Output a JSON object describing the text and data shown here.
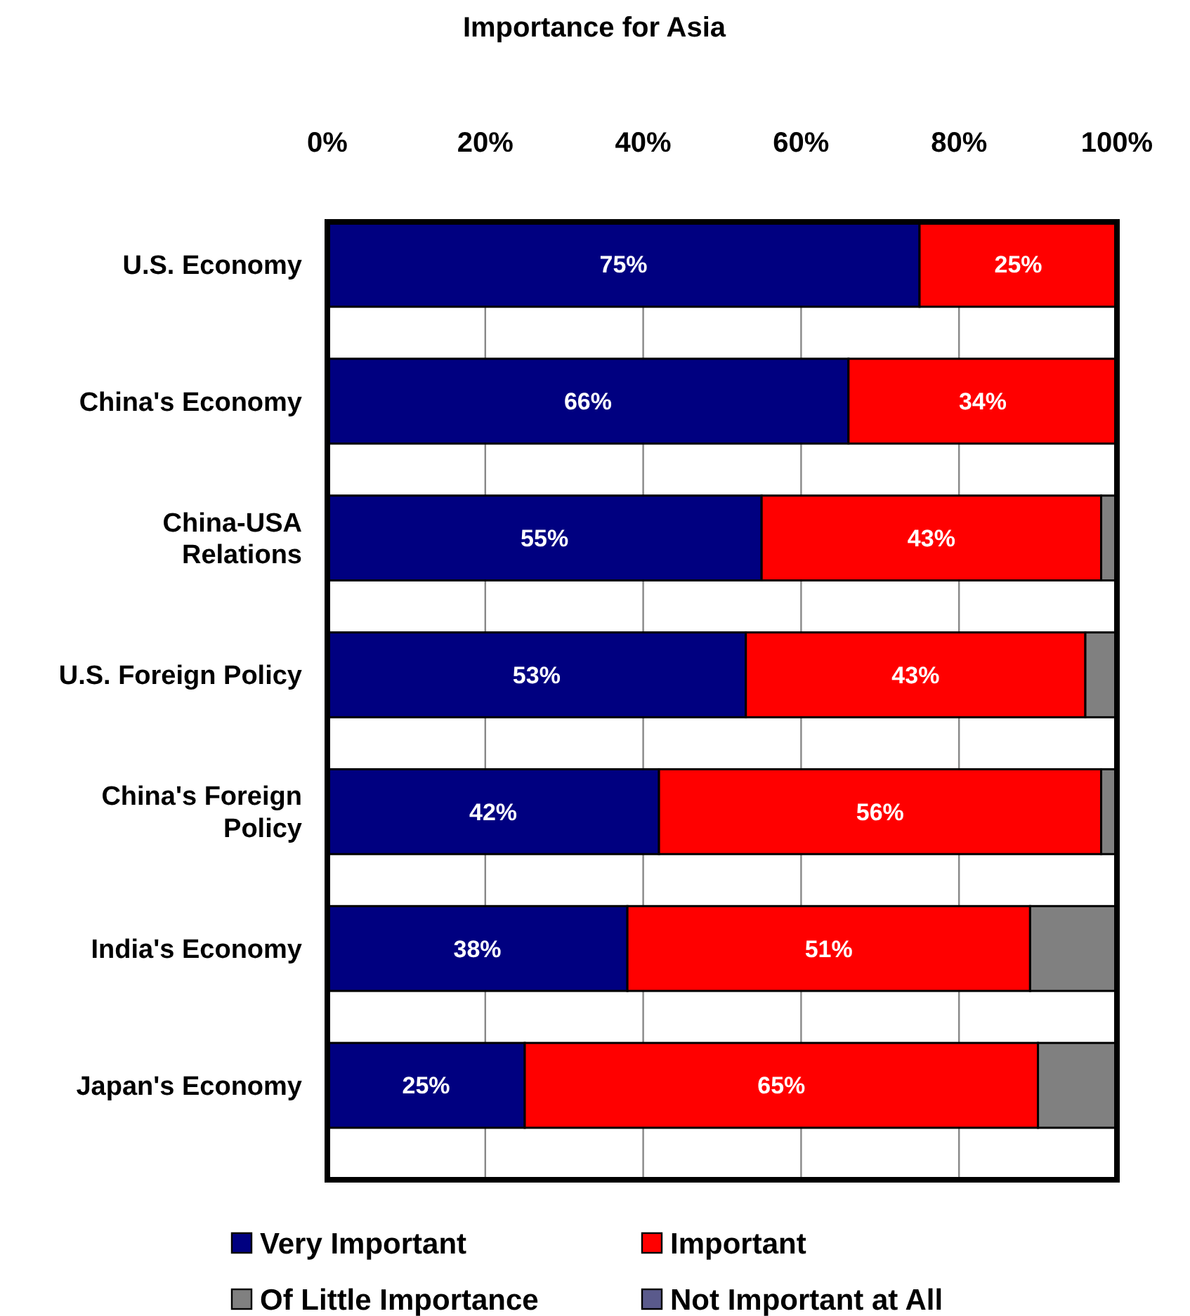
{
  "chart_data": {
    "type": "bar",
    "title": "Importance for Asia",
    "orientation": "horizontal",
    "stacked": true,
    "categories": [
      "U.S. Economy",
      "China's Economy",
      "China-USA\nRelations",
      "U.S. Foreign Policy",
      "China's Foreign\nPolicy",
      "India's Economy",
      "Japan's Economy"
    ],
    "series": [
      {
        "name": "Very Important",
        "color": "#000080",
        "values": [
          75,
          66,
          55,
          53,
          42,
          38,
          25
        ],
        "value_labels": [
          "75%",
          "66%",
          "55%",
          "53%",
          "42%",
          "38%",
          "25%"
        ]
      },
      {
        "name": "Important",
        "color": "#ff0000",
        "values": [
          25,
          34,
          43,
          43,
          56,
          51,
          65
        ],
        "value_labels": [
          "25%",
          "34%",
          "43%",
          "43%",
          "56%",
          "51%",
          "65%"
        ]
      },
      {
        "name": "Of Little Importance",
        "color": "#808080",
        "values": [
          0,
          0,
          2,
          4,
          2,
          11,
          10
        ]
      },
      {
        "name": "Not Important at All",
        "color": "#5a5a8c",
        "values": [
          0,
          0,
          0,
          0,
          0,
          0,
          0
        ]
      }
    ],
    "xlim": [
      0,
      100
    ],
    "xticks": [
      {
        "value": 0,
        "label": "0%"
      },
      {
        "value": 20,
        "label": "20%"
      },
      {
        "value": 40,
        "label": "40%"
      },
      {
        "value": 60,
        "label": "60%"
      },
      {
        "value": 80,
        "label": "80%"
      },
      {
        "value": 100,
        "label": "100%"
      }
    ],
    "grid": "x",
    "legend": "bottom"
  }
}
